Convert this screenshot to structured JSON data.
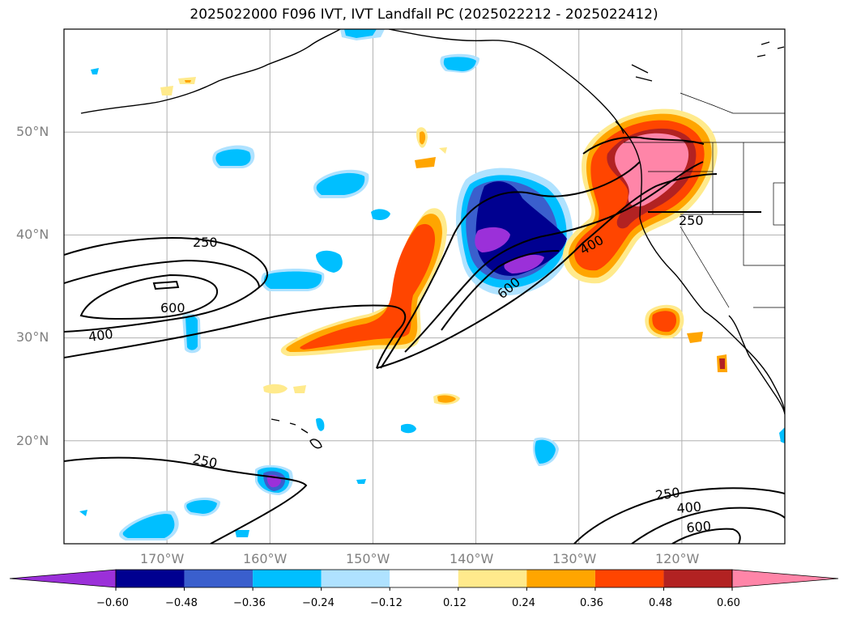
{
  "title": "2025022000 F096 IVT, IVT Landfall PC (2025022212 - 2025022412)",
  "map": {
    "projection": "lat-lon",
    "extent": {
      "lon": [
        -180,
        -110
      ],
      "lat": [
        10,
        60
      ]
    },
    "grid": true,
    "lat_labels": [
      "50°N",
      "40°N",
      "30°N",
      "20°N"
    ],
    "lon_labels": [
      "170°W",
      "160°W",
      "150°W",
      "140°W",
      "130°W",
      "120°W"
    ],
    "ivt_contour_labels": [
      "250",
      "600",
      "400",
      "250",
      "600",
      "400",
      "250",
      "250",
      "400",
      "600"
    ]
  },
  "colorbar": {
    "extend": "both",
    "tick_labels": [
      "−0.60",
      "−0.48",
      "−0.36",
      "−0.24",
      "−0.12",
      "0.12",
      "0.24",
      "0.36",
      "0.48",
      "0.60"
    ],
    "colors": [
      "#9b30d9",
      "#000090",
      "#3a5fcd",
      "#00bfff",
      "#afe2ff",
      "#ffffff",
      "#ffea8c",
      "#ffa500",
      "#ff4500",
      "#b22222",
      "#ff85a8"
    ]
  }
}
